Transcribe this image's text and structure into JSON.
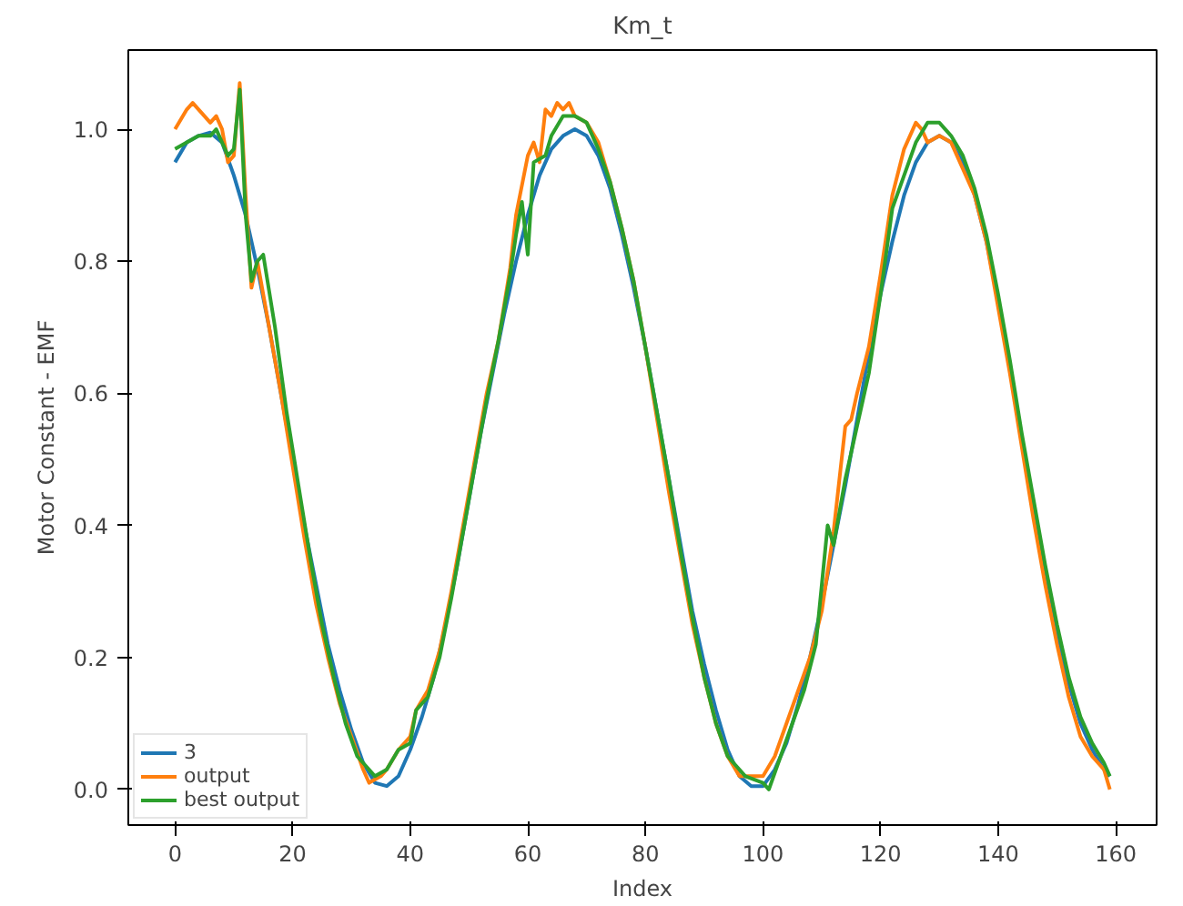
{
  "chart_data": {
    "type": "line",
    "title": "Km_t",
    "xlabel": "Index",
    "ylabel": "Motor Constant - EMF",
    "xlim": [
      -7.95,
      166.95
    ],
    "ylim": [
      -0.054,
      1.12
    ],
    "xticks": [
      0,
      20,
      40,
      60,
      80,
      100,
      120,
      140,
      160
    ],
    "yticks": [
      {
        "value": 0,
        "label": "0.0"
      },
      {
        "value": 0.2,
        "label": "0.2"
      },
      {
        "value": 0.4,
        "label": "0.4"
      },
      {
        "value": 0.6,
        "label": "0.6"
      },
      {
        "value": 0.8,
        "label": "0.8"
      },
      {
        "value": 1,
        "label": "1.0"
      }
    ],
    "grid": false,
    "legend": "bottom left",
    "marker": "none",
    "line_style": "solid",
    "series": [
      {
        "name": "3",
        "color": "#1f77b4",
        "x": [
          0,
          2,
          4,
          6,
          8,
          10,
          12,
          14,
          16,
          18,
          20,
          22,
          24,
          26,
          28,
          30,
          32,
          34,
          36,
          38,
          40,
          42,
          44,
          46,
          48,
          50,
          52,
          54,
          56,
          58,
          60,
          62,
          64,
          66,
          68,
          70,
          72,
          74,
          76,
          78,
          80,
          82,
          84,
          86,
          88,
          90,
          92,
          94,
          96,
          98,
          100,
          102,
          104,
          106,
          108,
          110,
          112,
          114,
          116,
          118,
          120,
          122,
          124,
          126,
          128,
          130,
          132,
          134,
          136,
          138,
          140,
          142,
          144,
          146,
          148,
          150,
          152,
          154,
          156,
          158,
          159
        ],
        "values": [
          0.95,
          0.98,
          0.99,
          0.995,
          0.98,
          0.93,
          0.87,
          0.79,
          0.7,
          0.6,
          0.5,
          0.4,
          0.31,
          0.22,
          0.15,
          0.09,
          0.04,
          0.01,
          0.005,
          0.02,
          0.06,
          0.11,
          0.17,
          0.25,
          0.34,
          0.44,
          0.54,
          0.63,
          0.72,
          0.8,
          0.87,
          0.93,
          0.97,
          0.99,
          1.0,
          0.99,
          0.96,
          0.91,
          0.84,
          0.76,
          0.67,
          0.57,
          0.47,
          0.37,
          0.27,
          0.19,
          0.12,
          0.06,
          0.02,
          0.005,
          0.005,
          0.03,
          0.07,
          0.13,
          0.2,
          0.28,
          0.37,
          0.46,
          0.56,
          0.66,
          0.75,
          0.83,
          0.9,
          0.95,
          0.98,
          0.99,
          0.98,
          0.95,
          0.9,
          0.83,
          0.74,
          0.64,
          0.53,
          0.43,
          0.33,
          0.24,
          0.16,
          0.1,
          0.06,
          0.03,
          0.02
        ]
      },
      {
        "name": "output",
        "color": "#ff7f0e",
        "x": [
          0,
          2,
          3,
          5,
          6,
          7,
          8,
          9,
          10,
          11,
          12,
          13,
          14,
          16,
          18,
          20,
          22,
          24,
          26,
          28,
          30,
          32,
          33,
          35,
          36,
          38,
          40,
          41,
          43,
          45,
          47,
          49,
          51,
          53,
          55,
          57,
          58,
          60,
          61,
          62,
          63,
          64,
          65,
          66,
          67,
          68,
          70,
          72,
          74,
          76,
          78,
          80,
          82,
          84,
          86,
          88,
          90,
          92,
          94,
          96,
          97,
          100,
          102,
          104,
          106,
          108,
          110,
          112,
          114,
          115,
          116,
          118,
          120,
          122,
          124,
          126,
          127,
          128,
          130,
          132,
          134,
          136,
          138,
          140,
          142,
          144,
          146,
          148,
          150,
          152,
          154,
          156,
          158,
          159
        ],
        "values": [
          1.0,
          1.03,
          1.04,
          1.02,
          1.01,
          1.02,
          1.0,
          0.95,
          0.96,
          1.07,
          0.9,
          0.76,
          0.8,
          0.7,
          0.6,
          0.49,
          0.38,
          0.28,
          0.2,
          0.13,
          0.08,
          0.03,
          0.01,
          0.02,
          0.03,
          0.06,
          0.08,
          0.12,
          0.15,
          0.21,
          0.3,
          0.4,
          0.5,
          0.6,
          0.68,
          0.79,
          0.87,
          0.96,
          0.98,
          0.95,
          1.03,
          1.02,
          1.04,
          1.03,
          1.04,
          1.02,
          1.01,
          0.98,
          0.92,
          0.85,
          0.77,
          0.67,
          0.56,
          0.45,
          0.35,
          0.25,
          0.17,
          0.1,
          0.05,
          0.02,
          0.02,
          0.02,
          0.05,
          0.1,
          0.15,
          0.2,
          0.27,
          0.39,
          0.55,
          0.56,
          0.6,
          0.67,
          0.78,
          0.9,
          0.97,
          1.01,
          1.0,
          0.98,
          0.99,
          0.98,
          0.94,
          0.9,
          0.83,
          0.73,
          0.63,
          0.52,
          0.41,
          0.31,
          0.22,
          0.14,
          0.08,
          0.05,
          0.03,
          0.0
        ]
      },
      {
        "name": "best output",
        "color": "#2ca02c",
        "x": [
          0,
          2,
          4,
          6,
          7,
          8,
          9,
          10,
          11,
          12,
          13,
          14,
          15,
          17,
          19,
          21,
          23,
          25,
          27,
          29,
          31,
          33,
          34,
          36,
          38,
          40,
          41,
          43,
          45,
          47,
          49,
          51,
          53,
          55,
          57,
          58,
          59,
          60,
          61,
          63,
          64,
          66,
          68,
          70,
          72,
          74,
          76,
          78,
          80,
          82,
          84,
          86,
          88,
          90,
          92,
          94,
          97,
          100,
          101,
          103,
          105,
          107,
          109,
          111,
          112,
          114,
          116,
          118,
          120,
          122,
          124,
          126,
          128,
          130,
          132,
          134,
          136,
          138,
          140,
          142,
          144,
          146,
          148,
          150,
          152,
          154,
          156,
          158,
          159
        ],
        "values": [
          0.97,
          0.98,
          0.99,
          0.99,
          1.0,
          0.98,
          0.96,
          0.97,
          1.06,
          0.87,
          0.77,
          0.8,
          0.81,
          0.7,
          0.57,
          0.46,
          0.35,
          0.25,
          0.17,
          0.1,
          0.05,
          0.03,
          0.02,
          0.03,
          0.06,
          0.07,
          0.12,
          0.14,
          0.2,
          0.29,
          0.39,
          0.49,
          0.59,
          0.68,
          0.78,
          0.84,
          0.89,
          0.81,
          0.95,
          0.96,
          0.99,
          1.02,
          1.02,
          1.01,
          0.97,
          0.92,
          0.85,
          0.77,
          0.67,
          0.57,
          0.47,
          0.36,
          0.26,
          0.17,
          0.1,
          0.05,
          0.02,
          0.01,
          0.0,
          0.05,
          0.1,
          0.15,
          0.22,
          0.4,
          0.37,
          0.47,
          0.55,
          0.63,
          0.75,
          0.88,
          0.93,
          0.98,
          1.01,
          1.01,
          0.99,
          0.96,
          0.91,
          0.84,
          0.75,
          0.65,
          0.54,
          0.44,
          0.34,
          0.25,
          0.17,
          0.11,
          0.07,
          0.04,
          0.02
        ]
      }
    ]
  }
}
